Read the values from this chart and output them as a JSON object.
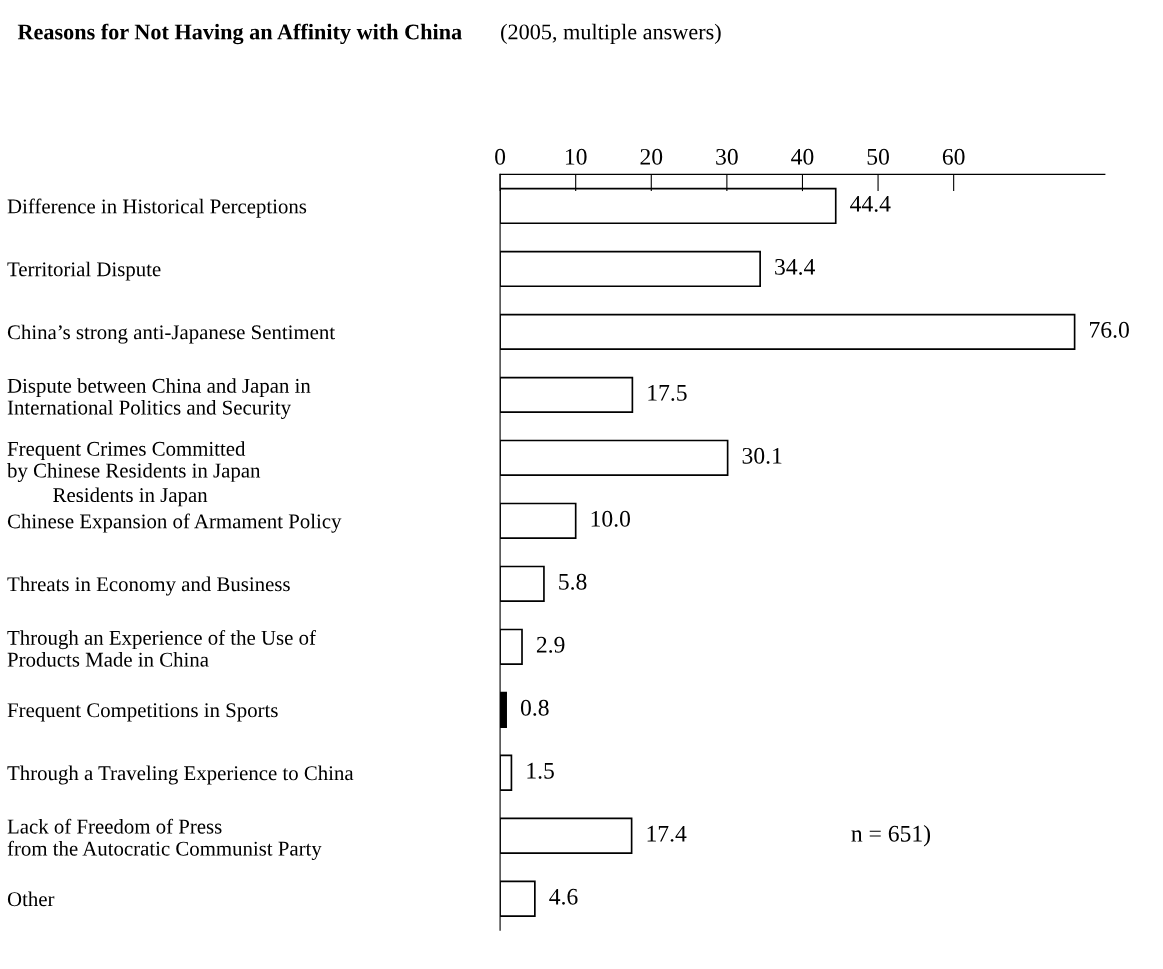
{
  "chart_data": {
    "type": "bar",
    "orientation": "horizontal",
    "title": "Reasons for Not Having an Affinity with China",
    "subtitle": "(2005, multiple answers)",
    "categories": [
      "Difference in Historical Perceptions",
      "Territorial Dispute",
      "China’s strong anti-Japanese Sentiment",
      "Dispute between China and Japan in\nInternational Politics and Security",
      "Frequent Crimes Committed\nby Chinese Residents in Japan",
      "Chinese Expansion of Armament Policy",
      "Threats in Economy and Business",
      "Through an Experience of the Use of\nProducts Made in China",
      "Frequent Competitions in Sports",
      "Through a Traveling Experience to China",
      "Lack of Freedom of Press\nfrom the Autocratic Communist Party",
      "Other"
    ],
    "values": [
      44.4,
      34.4,
      76.0,
      17.5,
      30.1,
      10.0,
      5.8,
      2.9,
      0.8,
      1.5,
      17.4,
      4.6
    ],
    "colors": [
      "#ffffff",
      "#ffffff",
      "#ffffff",
      "#ffffff",
      "#ffffff",
      "#ffffff",
      "#ffffff",
      "#ffffff",
      "#000000",
      "#ffffff",
      "#ffffff",
      "#ffffff"
    ],
    "value_labels": [
      "44.4",
      "34.4",
      "76.0",
      "17.5",
      "30.1",
      "10.0",
      "5.8",
      "2.9",
      "0.8",
      "1.5",
      "17.4",
      "4.6"
    ],
    "xlim": [
      0,
      80
    ],
    "xticks": [
      0,
      10,
      20,
      30,
      40,
      50,
      60
    ],
    "grid": false,
    "legend": false,
    "annotations": [
      "Residents in Japan",
      "n = 651)"
    ]
  }
}
